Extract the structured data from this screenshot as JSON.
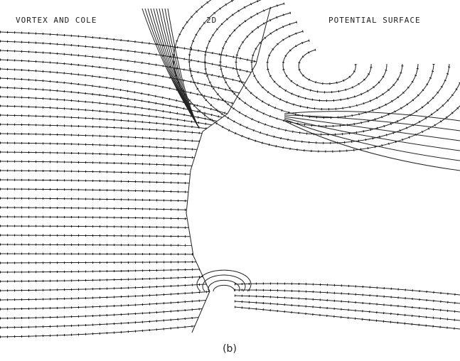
{
  "figure": {
    "header_left": "VORTEX AND COLE",
    "header_center": "2D",
    "header_right": "POTENTIAL SURFACE",
    "caption": "(b)"
  }
}
